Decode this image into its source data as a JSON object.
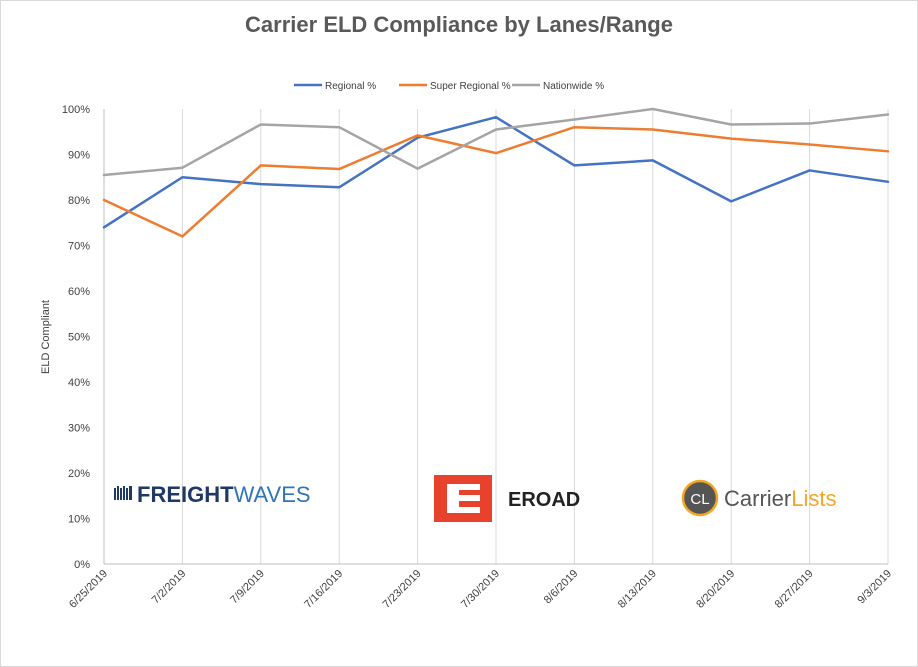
{
  "chart_data": {
    "type": "line",
    "title": "Carrier ELD Compliance by Lanes/Range",
    "xlabel": "",
    "ylabel": "ELD Compliant",
    "ylim": [
      0,
      100
    ],
    "y_ticks": [
      "0%",
      "10%",
      "20%",
      "30%",
      "40%",
      "50%",
      "60%",
      "70%",
      "80%",
      "90%",
      "100%"
    ],
    "grid": "vertical",
    "legend_position": "top",
    "categories": [
      "6/25/2019",
      "7/2/2019",
      "7/9/2019",
      "7/16/2019",
      "7/23/2019",
      "7/30/2019",
      "8/6/2019",
      "8/13/2019",
      "8/20/2019",
      "8/27/2019",
      "9/3/2019"
    ],
    "series": [
      {
        "name": "Regional %",
        "color": "#4472c4",
        "values": [
          74,
          85,
          83.5,
          82.8,
          93.7,
          98.2,
          87.6,
          88.7,
          79.7,
          86.5,
          84
        ]
      },
      {
        "name": "Super Regional %",
        "color": "#ed7d31",
        "values": [
          80,
          72,
          87.6,
          86.8,
          94.2,
          90.3,
          96,
          95.5,
          93.5,
          92.2,
          90.7
        ]
      },
      {
        "name": "Nationwide %",
        "color": "#a5a5a5",
        "values": [
          85.5,
          87.1,
          96.6,
          96,
          86.9,
          95.5,
          97.7,
          100,
          96.6,
          96.8,
          98.8
        ]
      }
    ]
  },
  "logos": {
    "freightwaves": {
      "part1": "FREIGHT",
      "part2": "WAVES",
      "dark": "#1f3864",
      "accent": "#2e75b6"
    },
    "eroad": {
      "mark": "E",
      "name": "EROAD",
      "color": "#e8412c"
    },
    "carrierlists": {
      "badge": "CL",
      "part1": "Carrier",
      "part2": "Lists",
      "accent": "#f5a623",
      "badge_color": "#555555"
    }
  }
}
